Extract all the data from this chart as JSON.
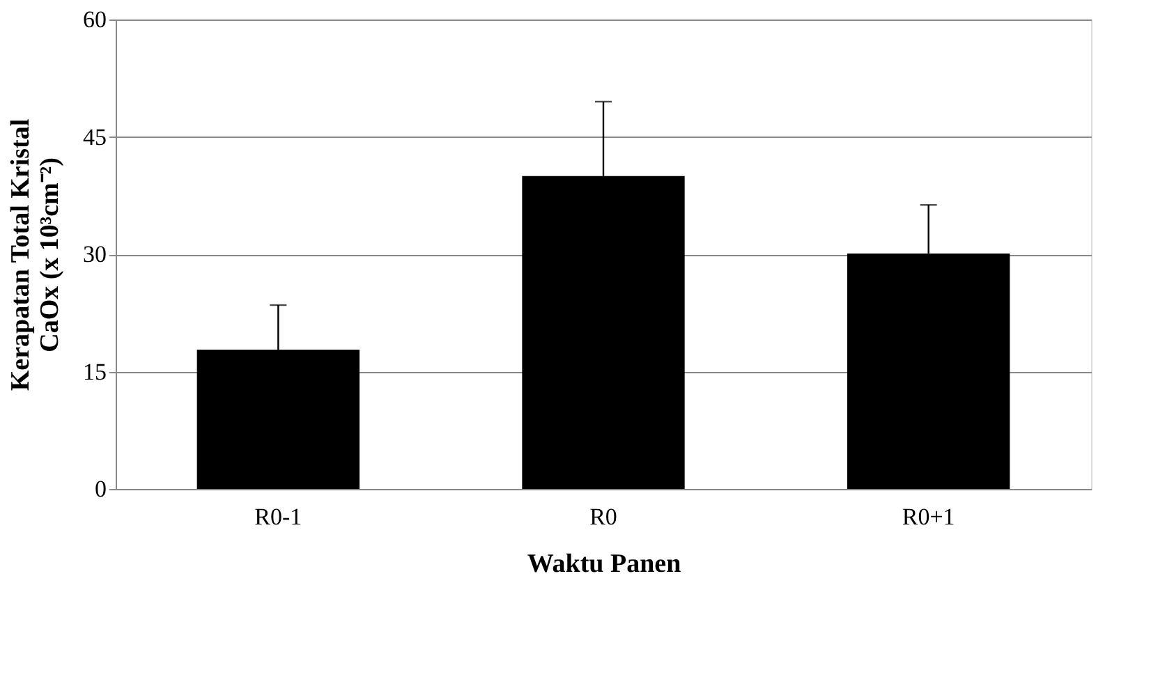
{
  "chart_data": {
    "type": "bar",
    "categories": [
      "R0-1",
      "R0",
      "R0+1"
    ],
    "values": [
      17.8,
      40.0,
      30.1
    ],
    "errors": [
      [
        17.8,
        23.5
      ],
      [
        40.0,
        49.5
      ],
      [
        30.1,
        36.3
      ]
    ],
    "color": "#000000",
    "xlabel": "Waktu Panen",
    "ylabel": "Kerapatan Total Kristal\nCaOx (x 10³cm⁻²)",
    "ylim": [
      0,
      60
    ],
    "yticks": [
      0,
      15,
      30,
      45,
      60
    ],
    "grid": "y"
  }
}
